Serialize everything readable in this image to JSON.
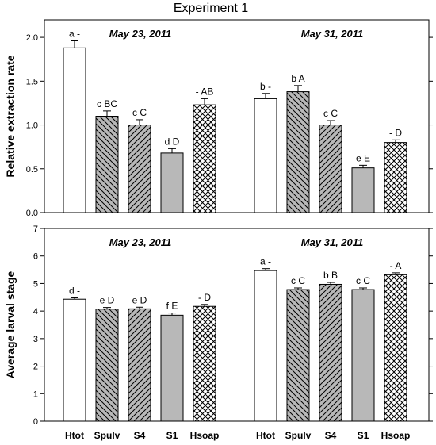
{
  "figure_title": "Experiment 1",
  "colors": {
    "bar_stroke": "#000000",
    "Htot": "#ffffff",
    "Spulv": "#b8b8b8",
    "S4": "#b8b8b8",
    "S1": "#b8b8b8",
    "Hsoap": "#ffffff"
  },
  "patterns": {
    "Htot": "none",
    "Spulv": "back-diagonal-hatch",
    "S4": "forward-diagonal-hatch",
    "S1": "none",
    "Hsoap": "crosshatch"
  },
  "chart_data": [
    {
      "type": "bar",
      "ylabel": "Relative extraction rate",
      "ylim": [
        0,
        2.2
      ],
      "yticks": [
        "0.0",
        "0.5",
        "1.0",
        "1.5",
        "2.0"
      ],
      "ytick_values": [
        0,
        0.5,
        1.0,
        1.5,
        2.0
      ],
      "categories": [
        "Htot",
        "Spulv",
        "S4",
        "S1",
        "Hsoap"
      ],
      "groups": [
        {
          "name": "May 23, 2011",
          "values": [
            1.88,
            1.1,
            1.0,
            0.68,
            1.23
          ],
          "errors": [
            0.08,
            0.06,
            0.06,
            0.05,
            0.07
          ],
          "labels": [
            "a -",
            "c BC",
            "c C",
            "d D",
            "- AB"
          ]
        },
        {
          "name": "May 31, 2011",
          "values": [
            1.3,
            1.38,
            1.0,
            0.51,
            0.8
          ],
          "errors": [
            0.06,
            0.07,
            0.05,
            0.03,
            0.03
          ],
          "labels": [
            "b -",
            "b A",
            "c C",
            "e E",
            "- D"
          ]
        }
      ]
    },
    {
      "type": "bar",
      "ylabel": "Average larval stage",
      "ylim": [
        0,
        7
      ],
      "yticks": [
        "0",
        "1",
        "2",
        "3",
        "4",
        "5",
        "6",
        "7"
      ],
      "ytick_values": [
        0,
        1,
        2,
        3,
        4,
        5,
        6,
        7
      ],
      "categories": [
        "Htot",
        "Spulv",
        "S4",
        "S1",
        "Hsoap"
      ],
      "groups": [
        {
          "name": "May 23, 2011",
          "values": [
            4.43,
            4.07,
            4.08,
            3.85,
            4.17
          ],
          "errors": [
            0.05,
            0.06,
            0.06,
            0.08,
            0.07
          ],
          "labels": [
            "d -",
            "e D",
            "e D",
            "f E",
            "- D"
          ]
        },
        {
          "name": "May 31, 2011",
          "values": [
            5.47,
            4.78,
            4.97,
            4.78,
            5.32
          ],
          "errors": [
            0.07,
            0.06,
            0.07,
            0.06,
            0.07
          ],
          "labels": [
            "a -",
            "c C",
            "b B",
            "c C",
            "- A"
          ]
        }
      ]
    }
  ]
}
